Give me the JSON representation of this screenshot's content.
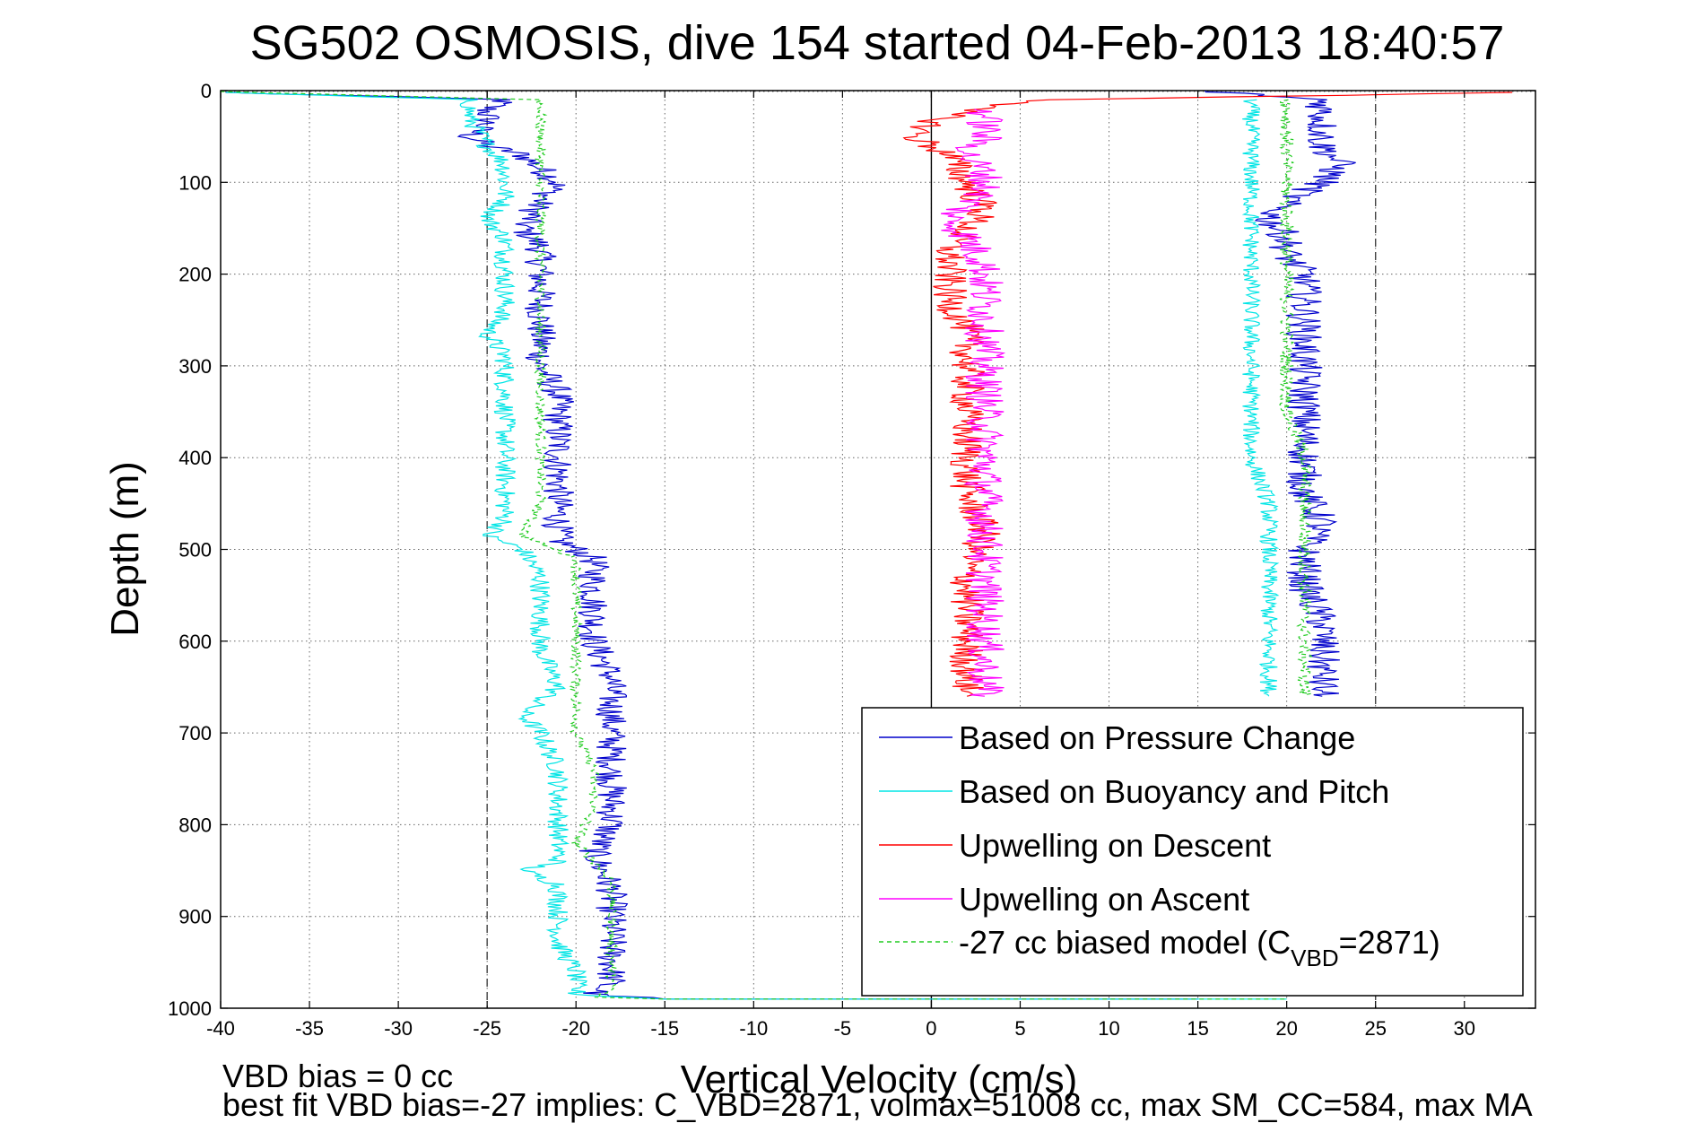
{
  "chart_data": {
    "type": "line",
    "title": "SG502 OSMOSIS, dive 154 started 04-Feb-2013 18:40:57",
    "xlabel": "Vertical Velocity (cm/s)",
    "ylabel": "Depth (m)",
    "xlim": [
      -40,
      34
    ],
    "ylim": [
      0,
      1000
    ],
    "y_reversed": true,
    "grid": true,
    "x_ticks": [
      -40,
      -35,
      -30,
      -25,
      -20,
      -15,
      -10,
      -5,
      0,
      5,
      10,
      15,
      20,
      25,
      30
    ],
    "y_ticks": [
      0,
      100,
      200,
      300,
      400,
      500,
      600,
      700,
      800,
      900,
      1000
    ],
    "x_tick_labels": [
      "-40",
      "-35",
      "-30",
      "-25",
      "-20",
      "-15",
      "-10",
      "-5",
      "0",
      "5",
      "10",
      "15",
      "20",
      "25",
      "30"
    ],
    "y_tick_labels": [
      "0",
      "100",
      "200",
      "300",
      "400",
      "500",
      "600",
      "700",
      "800",
      "900",
      "1000"
    ],
    "vertical_reference_lines": [
      {
        "x": -25,
        "style": "dashed"
      },
      {
        "x": 0,
        "style": "solid"
      },
      {
        "x": 25,
        "style": "dashed"
      }
    ],
    "legend": {
      "position": "lower-right",
      "entries": [
        {
          "text": "Based on Pressure Change",
          "color": "#0000cc"
        },
        {
          "text": "Based on Buoyancy and Pitch",
          "color": "#00e5e5"
        },
        {
          "text": "Upwelling on Descent",
          "color": "#ff0000"
        },
        {
          "text": "Upwelling on Ascent",
          "color": "#ff00ff"
        },
        {
          "text_prefix": "-27 cc biased model (C",
          "text_sub": "VBD",
          "text_suffix": "=2871)",
          "color": "#22cc22",
          "dashed": true
        }
      ]
    },
    "series": [
      {
        "key": "pressure_descent",
        "color": "#0000cc",
        "noise": 0.9,
        "points": [
          [
            -40,
            2
          ],
          [
            -24,
            10
          ],
          [
            -25,
            20
          ],
          [
            -25,
            35
          ],
          [
            -26,
            50
          ],
          [
            -25,
            60
          ],
          [
            -23,
            70
          ],
          [
            -22,
            85
          ],
          [
            -21,
            100
          ],
          [
            -22,
            120
          ],
          [
            -23,
            150
          ],
          [
            -22,
            170
          ],
          [
            -22,
            190
          ],
          [
            -22,
            230
          ],
          [
            -22,
            270
          ],
          [
            -22,
            300
          ],
          [
            -21,
            330
          ],
          [
            -21,
            360
          ],
          [
            -21,
            400
          ],
          [
            -21,
            450
          ],
          [
            -21,
            490
          ],
          [
            -19,
            510
          ],
          [
            -19,
            560
          ],
          [
            -19,
            600
          ],
          [
            -18,
            640
          ],
          [
            -18,
            680
          ],
          [
            -18,
            720
          ],
          [
            -18,
            760
          ],
          [
            -18,
            800
          ],
          [
            -19,
            830
          ],
          [
            -18,
            870
          ],
          [
            -18,
            910
          ],
          [
            -18,
            940
          ],
          [
            -18,
            970
          ],
          [
            -19,
            985
          ],
          [
            -15,
            990
          ],
          [
            15,
            990
          ]
        ]
      },
      {
        "key": "buoyancy_descent",
        "color": "#00e5e5",
        "noise": 0.6,
        "points": [
          [
            -40,
            2
          ],
          [
            -26,
            10
          ],
          [
            -26,
            30
          ],
          [
            -25,
            60
          ],
          [
            -24,
            80
          ],
          [
            -24,
            100
          ],
          [
            -24,
            120
          ],
          [
            -25,
            140
          ],
          [
            -24,
            160
          ],
          [
            -24,
            200
          ],
          [
            -24,
            240
          ],
          [
            -25,
            265
          ],
          [
            -24,
            290
          ],
          [
            -24,
            330
          ],
          [
            -24,
            380
          ],
          [
            -24,
            430
          ],
          [
            -24,
            470
          ],
          [
            -25,
            485
          ],
          [
            -23,
            500
          ],
          [
            -22,
            530
          ],
          [
            -22,
            570
          ],
          [
            -22,
            610
          ],
          [
            -21,
            650
          ],
          [
            -23,
            680
          ],
          [
            -22,
            700
          ],
          [
            -21,
            740
          ],
          [
            -21,
            780
          ],
          [
            -21,
            810
          ],
          [
            -21,
            840
          ],
          [
            -23,
            850
          ],
          [
            -21,
            865
          ],
          [
            -21,
            900
          ],
          [
            -21,
            930
          ],
          [
            -20,
            960
          ],
          [
            -20,
            985
          ],
          [
            -15,
            990
          ],
          [
            20,
            990
          ]
        ]
      },
      {
        "key": "model_descent",
        "color": "#22cc22",
        "dashed": true,
        "noise": 0.3,
        "points": [
          [
            -40,
            1
          ],
          [
            -22,
            10
          ],
          [
            -22,
            40
          ],
          [
            -22,
            70
          ],
          [
            -22,
            100
          ],
          [
            -22,
            150
          ],
          [
            -22,
            200
          ],
          [
            -22,
            250
          ],
          [
            -22,
            300
          ],
          [
            -22,
            350
          ],
          [
            -22,
            400
          ],
          [
            -22,
            450
          ],
          [
            -23,
            485
          ],
          [
            -20,
            510
          ],
          [
            -20,
            560
          ],
          [
            -20,
            610
          ],
          [
            -20,
            660
          ],
          [
            -20,
            700
          ],
          [
            -19,
            740
          ],
          [
            -19,
            780
          ],
          [
            -20,
            820
          ],
          [
            -18,
            860
          ],
          [
            -18,
            900
          ],
          [
            -18,
            940
          ],
          [
            -18,
            980
          ],
          [
            -19,
            988
          ],
          [
            -15,
            990
          ],
          [
            20,
            990
          ]
        ]
      },
      {
        "key": "pressure_ascent",
        "color": "#0000cc",
        "noise": 1.0,
        "points": [
          [
            15,
            0
          ],
          [
            22,
            10
          ],
          [
            22,
            40
          ],
          [
            22,
            60
          ],
          [
            23,
            80
          ],
          [
            22,
            100
          ],
          [
            20,
            120
          ],
          [
            19,
            140
          ],
          [
            20,
            160
          ],
          [
            20,
            180
          ],
          [
            21,
            200
          ],
          [
            21,
            230
          ],
          [
            21,
            260
          ],
          [
            21,
            290
          ],
          [
            21,
            320
          ],
          [
            21,
            360
          ],
          [
            21,
            400
          ],
          [
            21,
            440
          ],
          [
            22,
            470
          ],
          [
            21,
            500
          ],
          [
            21,
            540
          ],
          [
            22,
            580
          ],
          [
            22,
            610
          ],
          [
            22,
            640
          ],
          [
            22,
            660
          ]
        ]
      },
      {
        "key": "buoyancy_ascent",
        "color": "#00e5e5",
        "noise": 0.5,
        "points": [
          [
            18,
            10
          ],
          [
            18,
            40
          ],
          [
            18,
            70
          ],
          [
            18,
            100
          ],
          [
            18,
            150
          ],
          [
            18,
            200
          ],
          [
            18,
            250
          ],
          [
            18,
            300
          ],
          [
            18,
            350
          ],
          [
            18,
            400
          ],
          [
            19,
            450
          ],
          [
            19,
            500
          ],
          [
            19,
            550
          ],
          [
            19,
            600
          ],
          [
            19,
            640
          ],
          [
            19,
            660
          ]
        ]
      },
      {
        "key": "model_ascent",
        "color": "#22cc22",
        "dashed": true,
        "noise": 0.4,
        "points": [
          [
            20,
            10
          ],
          [
            20,
            40
          ],
          [
            20,
            80
          ],
          [
            20,
            120
          ],
          [
            20,
            160
          ],
          [
            20,
            200
          ],
          [
            20,
            250
          ],
          [
            20,
            300
          ],
          [
            20,
            350
          ],
          [
            21,
            400
          ],
          [
            21,
            450
          ],
          [
            21,
            500
          ],
          [
            21,
            550
          ],
          [
            21,
            600
          ],
          [
            21,
            650
          ],
          [
            21,
            660
          ]
        ]
      },
      {
        "key": "upwelling_descent",
        "color": "#ff0000",
        "noise": 1.0,
        "points": [
          [
            33,
            2
          ],
          [
            7,
            10
          ],
          [
            2,
            20
          ],
          [
            0,
            35
          ],
          [
            -1,
            50
          ],
          [
            1,
            70
          ],
          [
            2,
            100
          ],
          [
            3,
            130
          ],
          [
            2,
            150
          ],
          [
            1,
            170
          ],
          [
            1,
            200
          ],
          [
            1,
            230
          ],
          [
            2,
            260
          ],
          [
            2,
            290
          ],
          [
            2,
            320
          ],
          [
            2,
            360
          ],
          [
            2,
            400
          ],
          [
            2,
            440
          ],
          [
            3,
            480
          ],
          [
            2,
            520
          ],
          [
            2,
            560
          ],
          [
            2,
            600
          ],
          [
            2,
            640
          ],
          [
            2,
            660
          ]
        ]
      },
      {
        "key": "upwelling_ascent",
        "color": "#ff00ff",
        "noise": 1.1,
        "points": [
          [
            3,
            20
          ],
          [
            3,
            50
          ],
          [
            2,
            70
          ],
          [
            3,
            90
          ],
          [
            3,
            110
          ],
          [
            1,
            140
          ],
          [
            2,
            160
          ],
          [
            3,
            190
          ],
          [
            3,
            220
          ],
          [
            3,
            250
          ],
          [
            3,
            280
          ],
          [
            3,
            310
          ],
          [
            3,
            350
          ],
          [
            3,
            400
          ],
          [
            3,
            450
          ],
          [
            3,
            500
          ],
          [
            3,
            550
          ],
          [
            3,
            600
          ],
          [
            3,
            640
          ],
          [
            3,
            660
          ]
        ]
      }
    ]
  },
  "footer": {
    "line1": "VBD bias = 0 cc",
    "line2": "best fit VBD bias=-27 implies: C_VBD=2871, volmax=51008 cc, max SM_CC=584, max MA"
  }
}
